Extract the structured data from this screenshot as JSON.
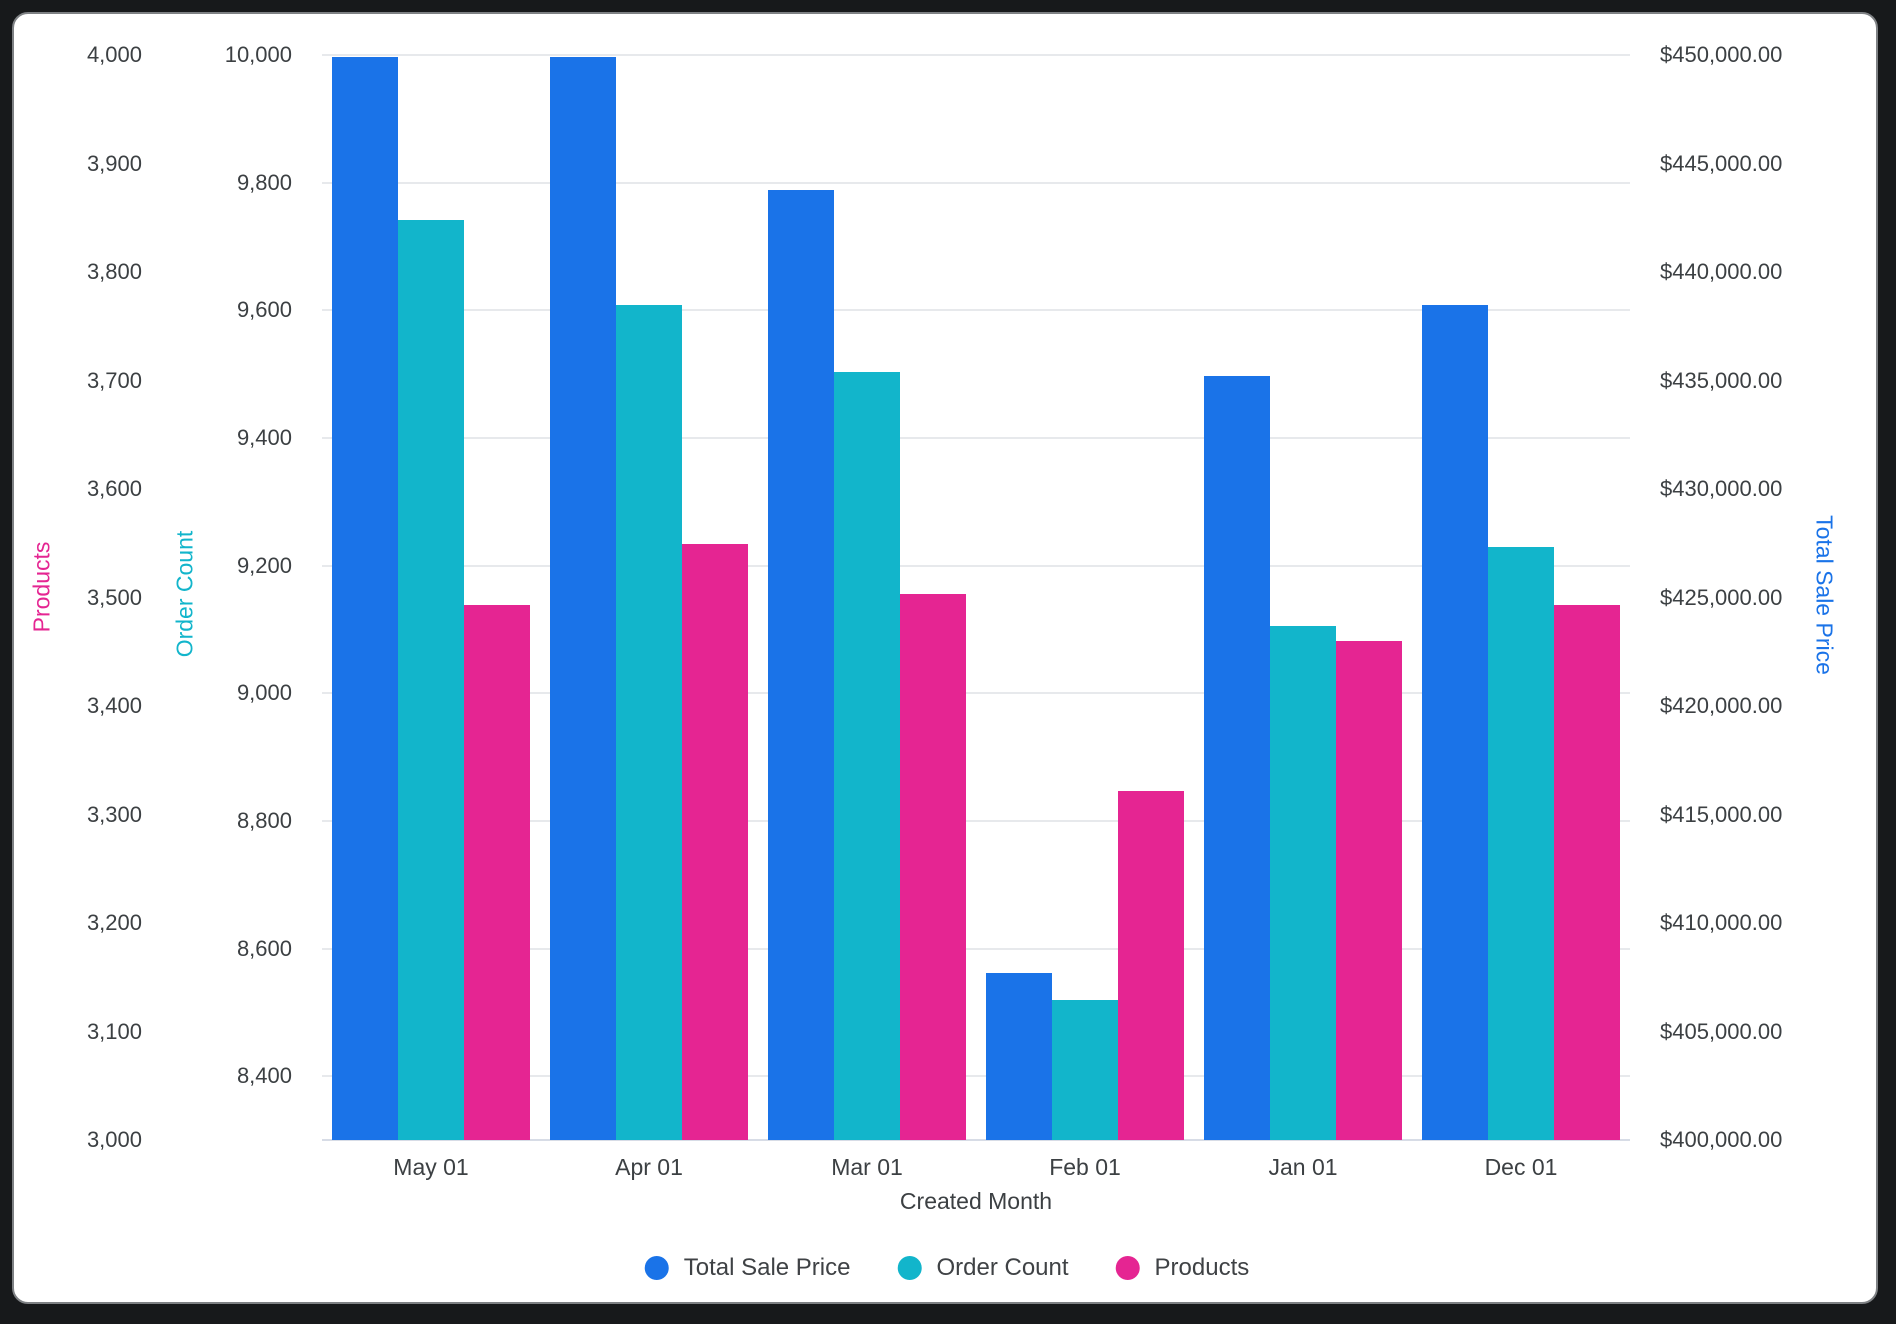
{
  "chart_data": {
    "type": "bar",
    "title": "",
    "xlabel": "Created Month",
    "categories": [
      "May 01",
      "Apr 01",
      "Mar 01",
      "Feb 01",
      "Jan 01",
      "Dec 01"
    ],
    "series": [
      {
        "name": "Total Sale Price",
        "axis": "price",
        "color": "#1A73E8",
        "values": [
          449900,
          449900,
          443800,
          407700,
          435200,
          438500
        ]
      },
      {
        "name": "Order Count",
        "axis": "orders",
        "color": "#12B5CB",
        "values": [
          9742,
          9608,
          9503,
          8519,
          9106,
          9229
        ]
      },
      {
        "name": "Products",
        "axis": "products",
        "color": "#E52592",
        "values": [
          3493,
          3549,
          3503,
          3322,
          3460,
          3493
        ]
      }
    ],
    "axes": {
      "products": {
        "title": "Products",
        "color": "#E52592",
        "side": "left-outer",
        "min": 3000,
        "max": 4000,
        "tick_values": [
          4000,
          3900,
          3800,
          3700,
          3600,
          3500,
          3400,
          3300,
          3200,
          3100,
          3000
        ],
        "tick_labels": [
          "4,000",
          "3,900",
          "3,800",
          "3,700",
          "3,600",
          "3,500",
          "3,400",
          "3,300",
          "3,200",
          "3,100",
          "3,000"
        ]
      },
      "orders": {
        "title": "Order Count",
        "color": "#12B5CB",
        "side": "left-inner",
        "min": 8300,
        "max": 10000,
        "tick_values": [
          10000,
          9800,
          9600,
          9400,
          9200,
          9000,
          8800,
          8600,
          8400
        ],
        "tick_labels": [
          "10,000",
          "9,800",
          "9,600",
          "9,400",
          "9,200",
          "9,000",
          "8,800",
          "8,600",
          "8,400"
        ]
      },
      "price": {
        "title": "Total Sale Price",
        "color": "#1A73E8",
        "side": "right",
        "min": 400000,
        "max": 450000,
        "tick_values": [
          450000,
          445000,
          440000,
          435000,
          430000,
          425000,
          420000,
          415000,
          410000,
          405000,
          400000
        ],
        "tick_labels": [
          "$450,000.00",
          "$445,000.00",
          "$440,000.00",
          "$435,000.00",
          "$430,000.00",
          "$425,000.00",
          "$420,000.00",
          "$415,000.00",
          "$410,000.00",
          "$405,000.00",
          "$400,000.00"
        ]
      }
    },
    "gridline_axis": "orders",
    "grid": "on",
    "legend_position": "bottom",
    "legend": [
      {
        "label": "Total Sale Price",
        "color": "#1A73E8"
      },
      {
        "label": "Order Count",
        "color": "#12B5CB"
      },
      {
        "label": "Products",
        "color": "#E52592"
      }
    ]
  }
}
